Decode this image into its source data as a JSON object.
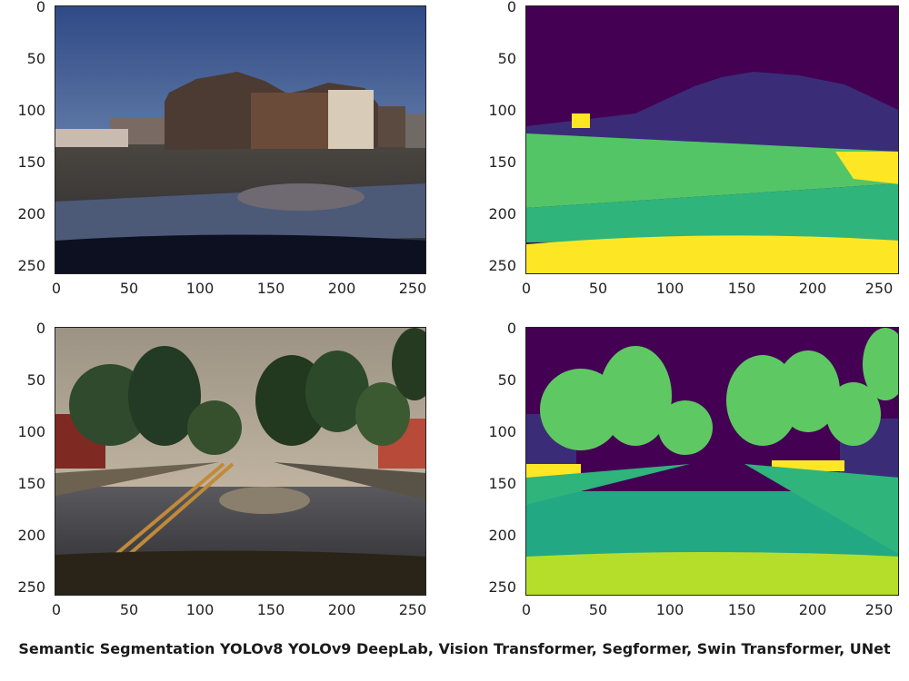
{
  "panels": [
    {
      "name": "photo-street-day",
      "kind": "photo-day"
    },
    {
      "name": "segmentation-street-day",
      "kind": "seg-day"
    },
    {
      "name": "photo-street-trees",
      "kind": "photo-trees"
    },
    {
      "name": "segmentation-street-trees",
      "kind": "seg-trees"
    }
  ],
  "axis_ticks": [
    "0",
    "50",
    "100",
    "150",
    "200",
    "250"
  ],
  "palette": {
    "seg_sky": "#440154",
    "seg_building": "#3b2c78",
    "seg_vegetation": "#53c567",
    "seg_road": "#2fb47c",
    "seg_hood": "#fde725",
    "seg_road_trees": "#23a884",
    "seg_tree": "#5ec962"
  },
  "caption": "Semantic Segmentation YOLOv8 YOLOv9 DeepLab, Vision Transformer, Segformer, Swin Transformer, UNet"
}
